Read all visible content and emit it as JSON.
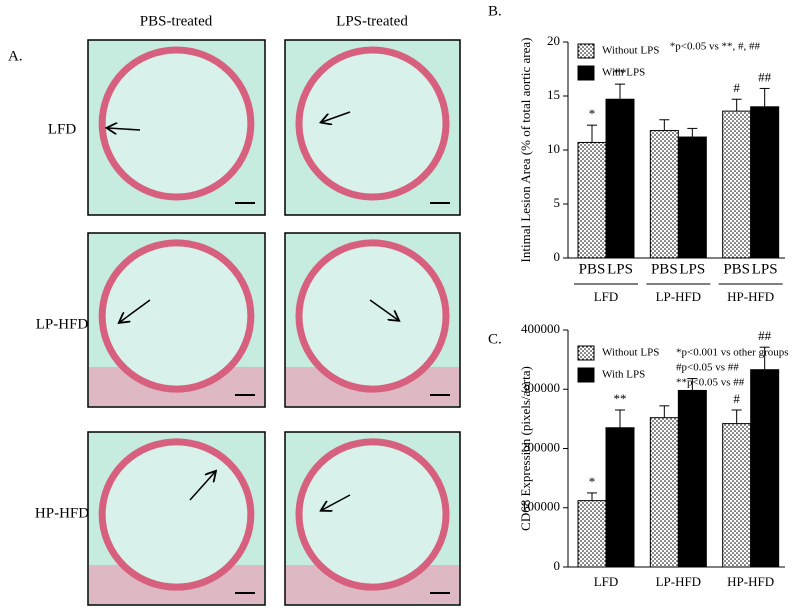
{
  "panel_a": {
    "label": "A.",
    "columns": [
      "PBS-treated",
      "LPS-treated"
    ],
    "rows": [
      "LFD",
      "LP-HFD",
      "HP-HFD"
    ]
  },
  "chart_data": [
    {
      "type": "bar",
      "panel": "B.",
      "y_label": "Intimal Lesion Area (% of total aortic area)",
      "categories": [
        "LFD",
        "LP-HFD",
        "HP-HFD"
      ],
      "bar_labels": [
        "PBS",
        "LPS",
        "PBS",
        "LPS",
        "PBS",
        "LPS"
      ],
      "series": [
        {
          "name": "Without LPS",
          "color": "#ffffff",
          "hatch": "dots",
          "values": [
            10.7,
            11.8,
            13.6
          ],
          "errors": [
            1.6,
            1.0,
            1.1
          ],
          "markers": [
            "*",
            null,
            "#"
          ]
        },
        {
          "name": "With LPS",
          "color": "#000000",
          "values": [
            14.7,
            11.2,
            14.0
          ],
          "errors": [
            1.4,
            0.8,
            1.7
          ],
          "markers": [
            "**",
            null,
            "##"
          ]
        }
      ],
      "ylim": [
        0,
        20
      ],
      "yticks": [
        0,
        5,
        10,
        15,
        20
      ],
      "legend": "upper left",
      "annotations": [
        "*p<0.05 vs **, #, ##"
      ]
    },
    {
      "type": "bar",
      "panel": "C.",
      "y_label": "CD68 Expression (pixels/aorta)",
      "categories": [
        "LFD",
        "LP-HFD",
        "HP-HFD"
      ],
      "series": [
        {
          "name": "Without LPS",
          "color": "#ffffff",
          "hatch": "dots",
          "values": [
            112000,
            252000,
            242000
          ],
          "errors": [
            13000,
            20000,
            23000
          ],
          "markers": [
            "*",
            null,
            "#"
          ]
        },
        {
          "name": "With LPS",
          "color": "#000000",
          "values": [
            235000,
            298000,
            333000
          ],
          "errors": [
            30000,
            20000,
            38000
          ],
          "markers": [
            "**",
            null,
            "##"
          ]
        }
      ],
      "ylim": [
        0,
        400000
      ],
      "yticks": [
        0,
        100000,
        200000,
        300000,
        400000
      ],
      "legend": "upper left",
      "annotations": [
        "*p<0.001 vs other groups",
        "#p<0.05 vs ##",
        "**p<0.05 vs ##"
      ]
    }
  ]
}
